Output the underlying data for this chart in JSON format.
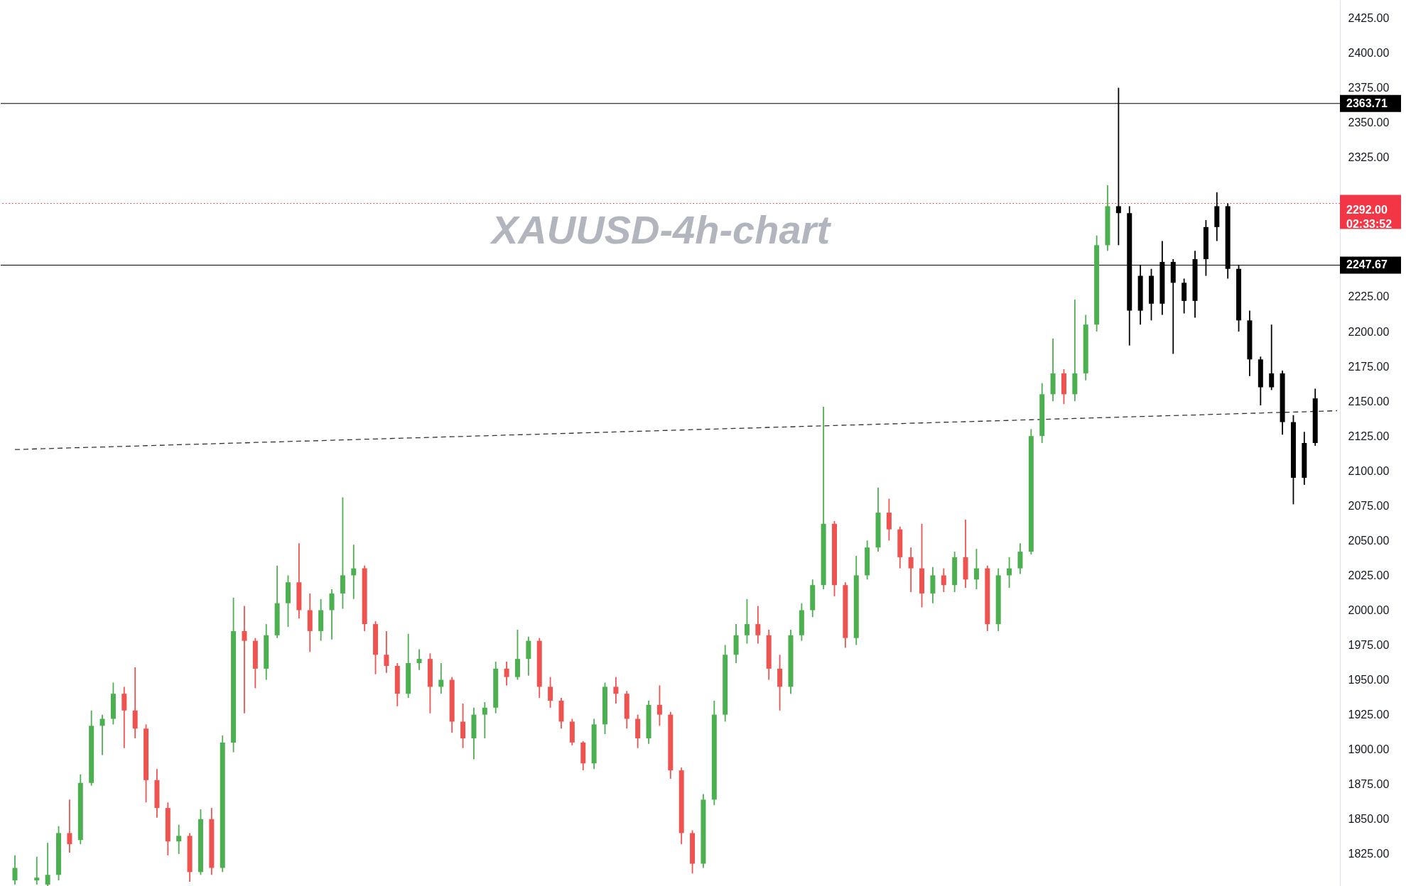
{
  "chart_data": {
    "type": "candlestick",
    "title": "XAUUSD-4h-chart",
    "categories": [
      null,
      null,
      null,
      null,
      null,
      null,
      null,
      null,
      null,
      null,
      null,
      null,
      null,
      null,
      null,
      null,
      null,
      null,
      null,
      null,
      null,
      null,
      null,
      null,
      null,
      null,
      null,
      null,
      null,
      null,
      null,
      null,
      null,
      null,
      null,
      null,
      null,
      null,
      null,
      null,
      null,
      null,
      null,
      null,
      null,
      null,
      null,
      null,
      null,
      null,
      null,
      null,
      null,
      null,
      null,
      null,
      null,
      null,
      null,
      null,
      null,
      null,
      null,
      null,
      null,
      null,
      null,
      null,
      null,
      null,
      null,
      null,
      null,
      null,
      null,
      null,
      null,
      null,
      null,
      null,
      null,
      null,
      null,
      null,
      null,
      null,
      null,
      null,
      null,
      null,
      null,
      null,
      null,
      null,
      null,
      null,
      null,
      null,
      null,
      null,
      null,
      null,
      null,
      null,
      null,
      null,
      null,
      null,
      null,
      null,
      null,
      null,
      null,
      null,
      null,
      null,
      null,
      null,
      null,
      null,
      null,
      null
    ],
    "ohlc": [
      [
        1806,
        1824,
        1803,
        1815
      ],
      null,
      [
        1806,
        1823,
        1803,
        1808
      ],
      [
        1803,
        1833,
        1802,
        1810
      ],
      [
        1810,
        1845,
        1806,
        1840
      ],
      [
        1840,
        1864,
        1826,
        1832
      ],
      [
        1835,
        1882,
        1832,
        1876
      ],
      [
        1876,
        1928,
        1874,
        1917
      ],
      [
        1917,
        1925,
        1896,
        1922
      ],
      [
        1922,
        1948,
        1918,
        1940
      ],
      [
        1940,
        1945,
        1901,
        1928
      ],
      [
        1928,
        1959,
        1908,
        1915
      ],
      [
        1915,
        1918,
        1862,
        1878
      ],
      [
        1878,
        1886,
        1851,
        1858
      ],
      [
        1858,
        1862,
        1824,
        1834
      ],
      [
        1834,
        1846,
        1825,
        1838
      ],
      [
        1838,
        1840,
        1805,
        1812
      ],
      [
        1812,
        1857,
        1810,
        1850
      ],
      [
        1850,
        1858,
        1810,
        1815
      ],
      [
        1815,
        1910,
        1812,
        1905
      ],
      [
        1905,
        2009,
        1898,
        1985
      ],
      [
        1985,
        2003,
        1926,
        1978
      ],
      [
        1978,
        1980,
        1944,
        1958
      ],
      [
        1958,
        1990,
        1950,
        1982
      ],
      [
        1982,
        2032,
        1980,
        2005
      ],
      [
        2005,
        2025,
        1988,
        2020
      ],
      [
        2020,
        2048,
        1994,
        2000
      ],
      [
        2000,
        2012,
        1970,
        1985
      ],
      [
        1985,
        2008,
        1978,
        2000
      ],
      [
        2000,
        2015,
        1979,
        2012
      ],
      [
        2012,
        2081,
        2001,
        2025
      ],
      [
        2025,
        2047,
        2008,
        2030
      ],
      [
        2030,
        2032,
        1985,
        1990
      ],
      [
        1990,
        1992,
        1954,
        1968
      ],
      [
        1968,
        1985,
        1955,
        1960
      ],
      [
        1960,
        1962,
        1931,
        1940
      ],
      [
        1940,
        1983,
        1937,
        1962
      ],
      [
        1962,
        1972,
        1957,
        1965
      ],
      [
        1965,
        1969,
        1926,
        1945
      ],
      [
        1945,
        1962,
        1940,
        1950
      ],
      [
        1950,
        1952,
        1912,
        1920
      ],
      [
        1920,
        1933,
        1901,
        1908
      ],
      [
        1908,
        1930,
        1893,
        1925
      ],
      [
        1925,
        1934,
        1908,
        1930
      ],
      [
        1930,
        1963,
        1926,
        1958
      ],
      [
        1958,
        1963,
        1946,
        1952
      ],
      [
        1952,
        1986,
        1950,
        1965
      ],
      [
        1965,
        1981,
        1953,
        1978
      ],
      [
        1978,
        1980,
        1937,
        1945
      ],
      [
        1945,
        1952,
        1930,
        1935
      ],
      [
        1935,
        1937,
        1915,
        1920
      ],
      [
        1920,
        1922,
        1903,
        1905
      ],
      [
        1905,
        1906,
        1885,
        1890
      ],
      [
        1890,
        1922,
        1886,
        1918
      ],
      [
        1918,
        1948,
        1911,
        1945
      ],
      [
        1945,
        1952,
        1933,
        1940
      ],
      [
        1940,
        1942,
        1915,
        1922
      ],
      [
        1922,
        1925,
        1901,
        1908
      ],
      [
        1908,
        1935,
        1904,
        1932
      ],
      [
        1932,
        1946,
        1917,
        1925
      ],
      [
        1925,
        1927,
        1879,
        1885
      ],
      [
        1885,
        1887,
        1832,
        1840
      ],
      [
        1840,
        1842,
        1811,
        1818
      ],
      [
        1818,
        1868,
        1815,
        1864
      ],
      [
        1864,
        1935,
        1860,
        1925
      ],
      [
        1925,
        1975,
        1920,
        1968
      ],
      [
        1968,
        1990,
        1962,
        1982
      ],
      [
        1982,
        2008,
        1976,
        1990
      ],
      [
        1990,
        2003,
        1976,
        1982
      ],
      [
        1982,
        1986,
        1950,
        1958
      ],
      [
        1958,
        1968,
        1928,
        1945
      ],
      [
        1945,
        1986,
        1940,
        1982
      ],
      [
        1982,
        2005,
        1978,
        2000
      ],
      [
        2000,
        2022,
        1995,
        2018
      ],
      [
        2018,
        2146,
        2015,
        2062
      ],
      [
        2062,
        2064,
        2010,
        2018
      ],
      [
        2018,
        2020,
        1973,
        1980
      ],
      [
        1980,
        2039,
        1975,
        2025
      ],
      [
        2025,
        2050,
        2022,
        2045
      ],
      [
        2045,
        2088,
        2042,
        2070
      ],
      [
        2070,
        2080,
        2050,
        2058
      ],
      [
        2058,
        2060,
        2030,
        2038
      ],
      [
        2038,
        2045,
        2013,
        2030
      ],
      [
        2030,
        2062,
        2002,
        2012
      ],
      [
        2012,
        2031,
        2005,
        2025
      ],
      [
        2025,
        2030,
        2013,
        2018
      ],
      [
        2018,
        2042,
        2013,
        2038
      ],
      [
        2038,
        2065,
        2016,
        2022
      ],
      [
        2022,
        2044,
        2015,
        2030
      ],
      [
        2030,
        2032,
        1985,
        1990
      ],
      [
        1990,
        2030,
        1985,
        2025
      ],
      [
        2025,
        2038,
        2016,
        2030
      ],
      [
        2030,
        2048,
        2026,
        2042
      ],
      [
        2042,
        2130,
        2040,
        2125
      ],
      [
        2125,
        2163,
        2120,
        2155
      ],
      [
        2155,
        2195,
        2150,
        2170
      ],
      [
        2170,
        2173,
        2148,
        2155
      ],
      [
        2155,
        2223,
        2150,
        2170
      ],
      [
        2170,
        2212,
        2165,
        2205
      ],
      [
        2205,
        2269,
        2200,
        2262
      ],
      [
        2262,
        2305,
        2258,
        2290
      ],
      [
        2290,
        2375,
        2262,
        2285
      ],
      [
        2285,
        2290,
        2190,
        2215
      ],
      [
        2215,
        2248,
        2205,
        2240
      ],
      [
        2240,
        2245,
        2208,
        2220
      ],
      [
        2220,
        2265,
        2212,
        2250
      ],
      [
        2250,
        2252,
        2184,
        2235
      ],
      [
        2235,
        2238,
        2213,
        2222
      ],
      [
        2222,
        2258,
        2210,
        2252
      ],
      [
        2252,
        2280,
        2240,
        2275
      ],
      [
        2275,
        2300,
        2265,
        2290
      ],
      [
        2290,
        2292,
        2238,
        2245
      ],
      [
        2245,
        2248,
        2200,
        2208
      ],
      [
        2208,
        2215,
        2168,
        2180
      ],
      [
        2180,
        2182,
        2147,
        2160
      ],
      [
        2160,
        2205,
        2158,
        2170
      ],
      [
        2170,
        2172,
        2126,
        2135
      ],
      [
        2135,
        2140,
        2076,
        2095
      ],
      [
        2095,
        2128,
        2090,
        2120
      ],
      [
        2120,
        2159,
        2118,
        2152
      ],
      null,
      null
    ],
    "colors": [
      "#4caf50",
      null,
      "#4caf50",
      "#4caf50",
      "#4caf50",
      "#ef5350",
      "#4caf50",
      "#4caf50",
      "#4caf50",
      "#4caf50",
      "#ef5350",
      "#ef5350",
      "#ef5350",
      "#ef5350",
      "#ef5350",
      "#4caf50",
      "#ef5350",
      "#4caf50",
      "#ef5350",
      "#4caf50",
      "#4caf50",
      "#ef5350",
      "#ef5350",
      "#4caf50",
      "#4caf50",
      "#4caf50",
      "#ef5350",
      "#ef5350",
      "#4caf50",
      "#4caf50",
      "#4caf50",
      "#4caf50",
      "#ef5350",
      "#ef5350",
      "#ef5350",
      "#ef5350",
      "#4caf50",
      "#4caf50",
      "#ef5350",
      "#4caf50",
      "#ef5350",
      "#ef5350",
      "#4caf50",
      "#4caf50",
      "#4caf50",
      "#ef5350",
      "#4caf50",
      "#4caf50",
      "#ef5350",
      "#ef5350",
      "#ef5350",
      "#ef5350",
      "#ef5350",
      "#4caf50",
      "#4caf50",
      "#ef5350",
      "#ef5350",
      "#ef5350",
      "#4caf50",
      "#ef5350",
      "#ef5350",
      "#ef5350",
      "#ef5350",
      "#4caf50",
      "#4caf50",
      "#4caf50",
      "#4caf50",
      "#4caf50",
      "#ef5350",
      "#ef5350",
      "#ef5350",
      "#4caf50",
      "#4caf50",
      "#4caf50",
      "#4caf50",
      "#ef5350",
      "#ef5350",
      "#4caf50",
      "#4caf50",
      "#4caf50",
      "#ef5350",
      "#ef5350",
      "#ef5350",
      "#ef5350",
      "#4caf50",
      "#ef5350",
      "#4caf50",
      "#ef5350",
      "#4caf50",
      "#ef5350",
      "#4caf50",
      "#4caf50",
      "#4caf50",
      "#4caf50",
      "#4caf50",
      "#4caf50",
      "#ef5350",
      "#4caf50",
      "#4caf50",
      "#4caf50",
      "#4caf50",
      "#000000",
      "#000000",
      "#000000",
      "#000000",
      "#000000",
      "#000000",
      "#000000",
      "#000000",
      "#000000",
      "#000000",
      "#000000",
      "#000000",
      "#000000",
      "#000000",
      "#000000",
      "#000000",
      "#000000",
      "#000000",
      "#000000",
      null,
      null
    ],
    "series": [
      {
        "type": "line",
        "color": "#333333",
        "line_style": "dashed",
        "values": [
          2115.3,
          2115.5,
          2115.8,
          2116.0,
          2116.2,
          2116.5,
          2116.7,
          2116.9,
          2117.1,
          2117.4,
          2117.6,
          2117.8,
          2118.1,
          2118.3,
          2118.5,
          2118.8,
          2119.0,
          2119.2,
          2119.4,
          2119.7,
          2119.9,
          2120.1,
          2120.4,
          2120.6,
          2120.8,
          2121.1,
          2121.3,
          2121.5,
          2121.7,
          2122.0,
          2122.2,
          2122.4,
          2122.7,
          2122.9,
          2123.1,
          2123.4,
          2123.6,
          2123.8,
          2124.0,
          2124.3,
          2124.5,
          2124.7,
          2125.0,
          2125.2,
          2125.4,
          2125.7,
          2125.9,
          2126.1,
          2126.3,
          2126.6,
          2126.8,
          2127.0,
          2127.3,
          2127.5,
          2127.7,
          2128.0,
          2128.2,
          2128.4,
          2128.6,
          2128.9,
          2129.1,
          2129.3,
          2129.6,
          2129.8,
          2130.0,
          2130.3,
          2130.5,
          2130.7,
          2130.9,
          2131.2,
          2131.4,
          2131.6,
          2131.9,
          2132.1,
          2132.3,
          2132.6,
          2132.8,
          2133.0,
          2133.2,
          2133.5,
          2133.7,
          2133.9,
          2134.2,
          2134.4,
          2134.6,
          2134.9,
          2135.1,
          2135.3,
          2135.5,
          2135.8,
          2136.0,
          2136.2,
          2136.5,
          2136.7,
          2136.9,
          2137.2,
          2137.4,
          2137.6,
          2137.8,
          2138.1,
          2138.3,
          2138.5,
          2138.8,
          2139.0,
          2139.2,
          2139.5,
          2139.7,
          2139.9,
          2140.1,
          2140.4,
          2140.6,
          2140.8,
          2141.1,
          2141.3,
          2141.5,
          2141.8,
          2142.0,
          2142.2,
          2142.4,
          2142.7,
          2142.9,
          2143.2
        ]
      }
    ],
    "ylim": [
      1802,
      2438
    ],
    "yticks": [
      {
        "value": 1825,
        "label": "1825.00"
      },
      {
        "value": 1850,
        "label": "1850.00"
      },
      {
        "value": 1875,
        "label": "1875.00"
      },
      {
        "value": 1900,
        "label": "1900.00"
      },
      {
        "value": 1925,
        "label": "1925.00"
      },
      {
        "value": 1950,
        "label": "1950.00"
      },
      {
        "value": 1975,
        "label": "1975.00"
      },
      {
        "value": 2000,
        "label": "2000.00"
      },
      {
        "value": 2025,
        "label": "2025.00"
      },
      {
        "value": 2050,
        "label": "2050.00"
      },
      {
        "value": 2075,
        "label": "2075.00"
      },
      {
        "value": 2100,
        "label": "2100.00"
      },
      {
        "value": 2125,
        "label": "2125.00"
      },
      {
        "value": 2150,
        "label": "2150.00"
      },
      {
        "value": 2175,
        "label": "2175.00"
      },
      {
        "value": 2200,
        "label": "2200.00"
      },
      {
        "value": 2225,
        "label": "2225.00"
      },
      {
        "value": 2325,
        "label": "2325.00"
      },
      {
        "value": 2350,
        "label": "2350.00"
      },
      {
        "value": 2375,
        "label": "2375.00"
      },
      {
        "value": 2400,
        "label": "2400.00"
      },
      {
        "value": 2425,
        "label": "2425.00"
      }
    ],
    "ref_lines": [
      {
        "axis": "y",
        "value": 2363.71,
        "label": "2363.71",
        "color": "#000000",
        "line_style": "solid"
      },
      {
        "axis": "y",
        "value": 2292,
        "label": "2292.00\n02:33:52",
        "color": "#f23645",
        "line_style": "dotted"
      },
      {
        "axis": "y",
        "value": 2247.67,
        "label": "2247.67",
        "color": "#000000",
        "line_style": "solid"
      }
    ],
    "tick_labels": "y"
  }
}
